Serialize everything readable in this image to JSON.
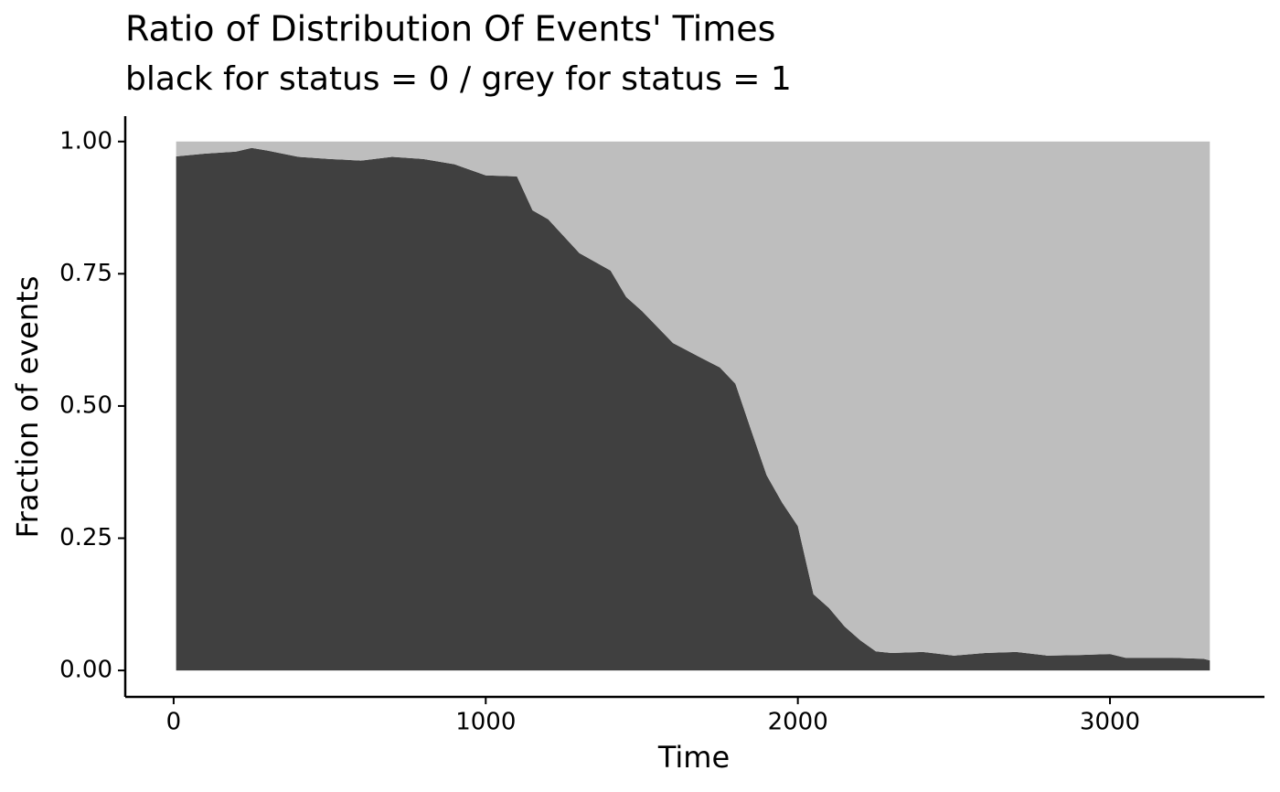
{
  "chart_data": {
    "type": "stacked_area",
    "title": "Ratio of Distribution Of Events' Times",
    "subtitle": "black for status = 0 / grey for status = 1",
    "x_label": "Time",
    "y_label": "Fraction of events",
    "x": [
      8,
      100,
      200,
      250,
      300,
      400,
      500,
      600,
      700,
      800,
      900,
      1000,
      1100,
      1150,
      1200,
      1300,
      1400,
      1450,
      1500,
      1600,
      1700,
      1750,
      1800,
      1850,
      1900,
      1950,
      2000,
      2050,
      2100,
      2150,
      2200,
      2250,
      2300,
      2400,
      2500,
      2600,
      2700,
      2800,
      2900,
      3000,
      3050,
      3200,
      3300,
      3320
    ],
    "series": [
      {
        "name": "status = 0",
        "color": "#404040",
        "values": [
          0.972,
          0.977,
          0.981,
          0.988,
          0.983,
          0.971,
          0.967,
          0.964,
          0.971,
          0.967,
          0.957,
          0.936,
          0.934,
          0.87,
          0.853,
          0.789,
          0.756,
          0.706,
          0.68,
          0.619,
          0.588,
          0.573,
          0.542,
          0.455,
          0.369,
          0.317,
          0.273,
          0.144,
          0.118,
          0.083,
          0.057,
          0.036,
          0.033,
          0.035,
          0.028,
          0.033,
          0.035,
          0.028,
          0.029,
          0.031,
          0.024,
          0.024,
          0.022,
          0.019
        ]
      },
      {
        "name": "status = 1",
        "color": "#bebebe",
        "values": [
          0.028,
          0.023,
          0.019,
          0.012,
          0.017,
          0.029,
          0.033,
          0.036,
          0.029,
          0.033,
          0.043,
          0.064,
          0.066,
          0.13,
          0.147,
          0.211,
          0.244,
          0.294,
          0.32,
          0.381,
          0.412,
          0.427,
          0.458,
          0.545,
          0.631,
          0.683,
          0.727,
          0.856,
          0.882,
          0.917,
          0.943,
          0.964,
          0.967,
          0.965,
          0.972,
          0.967,
          0.965,
          0.972,
          0.971,
          0.969,
          0.976,
          0.976,
          0.978,
          0.981
        ]
      }
    ],
    "xlim": [
      -155,
      3495
    ],
    "xticks": [
      0,
      1000,
      2000,
      3000
    ],
    "ylim": [
      -0.05,
      1.048
    ],
    "yticks": [
      {
        "value": 0,
        "label": "0.00"
      },
      {
        "value": 0.25,
        "label": "0.25"
      },
      {
        "value": 0.5,
        "label": "0.50"
      },
      {
        "value": 0.75,
        "label": "0.75"
      },
      {
        "value": 1,
        "label": "1.00"
      }
    ]
  }
}
